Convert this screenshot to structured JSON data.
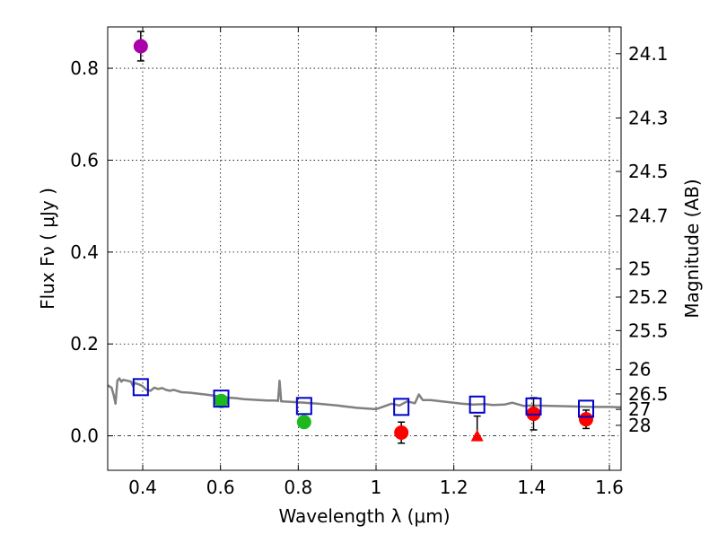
{
  "chart_data": {
    "type": "scatter",
    "xlabel": "Wavelength  λ (μm)",
    "ylabel_left": "Flux  Fν  ( μJy )",
    "ylabel_right": "Magnitude (AB)",
    "xlim": [
      0.31,
      1.63
    ],
    "ylim": [
      -0.075,
      0.89
    ],
    "x_ticks": [
      0.4,
      0.6,
      0.8,
      1.0,
      1.2,
      1.4,
      1.6
    ],
    "x_tick_labels": [
      "0.4",
      "0.6",
      "0.8",
      "1",
      "1.2",
      "1.4",
      "1.6"
    ],
    "y_ticks": [
      0.0,
      0.2,
      0.4,
      0.6,
      0.8
    ],
    "y_tick_labels": [
      "0.0",
      "0.2",
      "0.4",
      "0.6",
      "0.8"
    ],
    "mag_ticks": [
      24.1,
      24.3,
      24.5,
      24.7,
      25,
      25.2,
      25.5,
      26,
      26.5,
      27,
      28
    ],
    "mag_tick_labels": [
      "24.1",
      "24.3",
      "24.5",
      "24.7",
      "25",
      "25.2",
      "25.5",
      "26",
      "26.5",
      "27",
      "28"
    ],
    "grid": true,
    "series": [
      {
        "name": "model_sed",
        "style": "line",
        "color": "#808080",
        "x": [
          0.31,
          0.32,
          0.325,
          0.33,
          0.335,
          0.34,
          0.345,
          0.35,
          0.36,
          0.37,
          0.375,
          0.38,
          0.39,
          0.4,
          0.41,
          0.42,
          0.43,
          0.44,
          0.45,
          0.46,
          0.47,
          0.48,
          0.5,
          0.52,
          0.54,
          0.56,
          0.58,
          0.6,
          0.62,
          0.64,
          0.66,
          0.68,
          0.7,
          0.72,
          0.74,
          0.748,
          0.752,
          0.756,
          0.76,
          0.78,
          0.8,
          0.85,
          0.9,
          0.95,
          1.0,
          1.04,
          1.06,
          1.08,
          1.1,
          1.11,
          1.12,
          1.14,
          1.18,
          1.22,
          1.25,
          1.28,
          1.3,
          1.33,
          1.35,
          1.38,
          1.4,
          1.45,
          1.5,
          1.55,
          1.6,
          1.63
        ],
        "y": [
          0.11,
          0.105,
          0.09,
          0.07,
          0.12,
          0.125,
          0.118,
          0.122,
          0.12,
          0.118,
          0.108,
          0.115,
          0.112,
          0.108,
          0.1,
          0.098,
          0.105,
          0.102,
          0.104,
          0.1,
          0.098,
          0.1,
          0.095,
          0.094,
          0.092,
          0.09,
          0.088,
          0.085,
          0.083,
          0.082,
          0.08,
          0.079,
          0.078,
          0.077,
          0.077,
          0.076,
          0.12,
          0.075,
          0.075,
          0.074,
          0.073,
          0.07,
          0.066,
          0.061,
          0.058,
          0.07,
          0.066,
          0.075,
          0.071,
          0.09,
          0.078,
          0.078,
          0.074,
          0.07,
          0.068,
          0.069,
          0.067,
          0.068,
          0.072,
          0.065,
          0.066,
          0.065,
          0.064,
          0.063,
          0.063,
          0.062
        ]
      },
      {
        "name": "model_band_fluxes",
        "style": "open-square",
        "color": "#0000cc",
        "x": [
          0.395,
          0.602,
          0.815,
          1.065,
          1.26,
          1.405,
          1.54
        ],
        "y": [
          0.106,
          0.081,
          0.065,
          0.063,
          0.068,
          0.064,
          0.059
        ]
      },
      {
        "name": "observed_violet",
        "style": "circle",
        "color": "#aa00aa",
        "x": [
          0.395
        ],
        "y": [
          0.848
        ],
        "yerr": [
          0.032
        ]
      },
      {
        "name": "observed_green",
        "style": "circle",
        "color": "#1fb81f",
        "x": [
          0.602,
          0.815
        ],
        "y": [
          0.076,
          0.03
        ],
        "yerr": [
          0.0,
          0.009
        ]
      },
      {
        "name": "observed_red",
        "style": "circle",
        "color": "#ff0000",
        "x": [
          1.065,
          1.405,
          1.54
        ],
        "y": [
          0.007,
          0.048,
          0.036
        ],
        "yerr": [
          0.023,
          0.035,
          0.02
        ]
      },
      {
        "name": "upper_limit",
        "style": "triangle",
        "color": "#ff0000",
        "x": [
          1.26
        ],
        "y": [
          0.0
        ],
        "yerr_up": [
          0.043
        ]
      }
    ]
  }
}
